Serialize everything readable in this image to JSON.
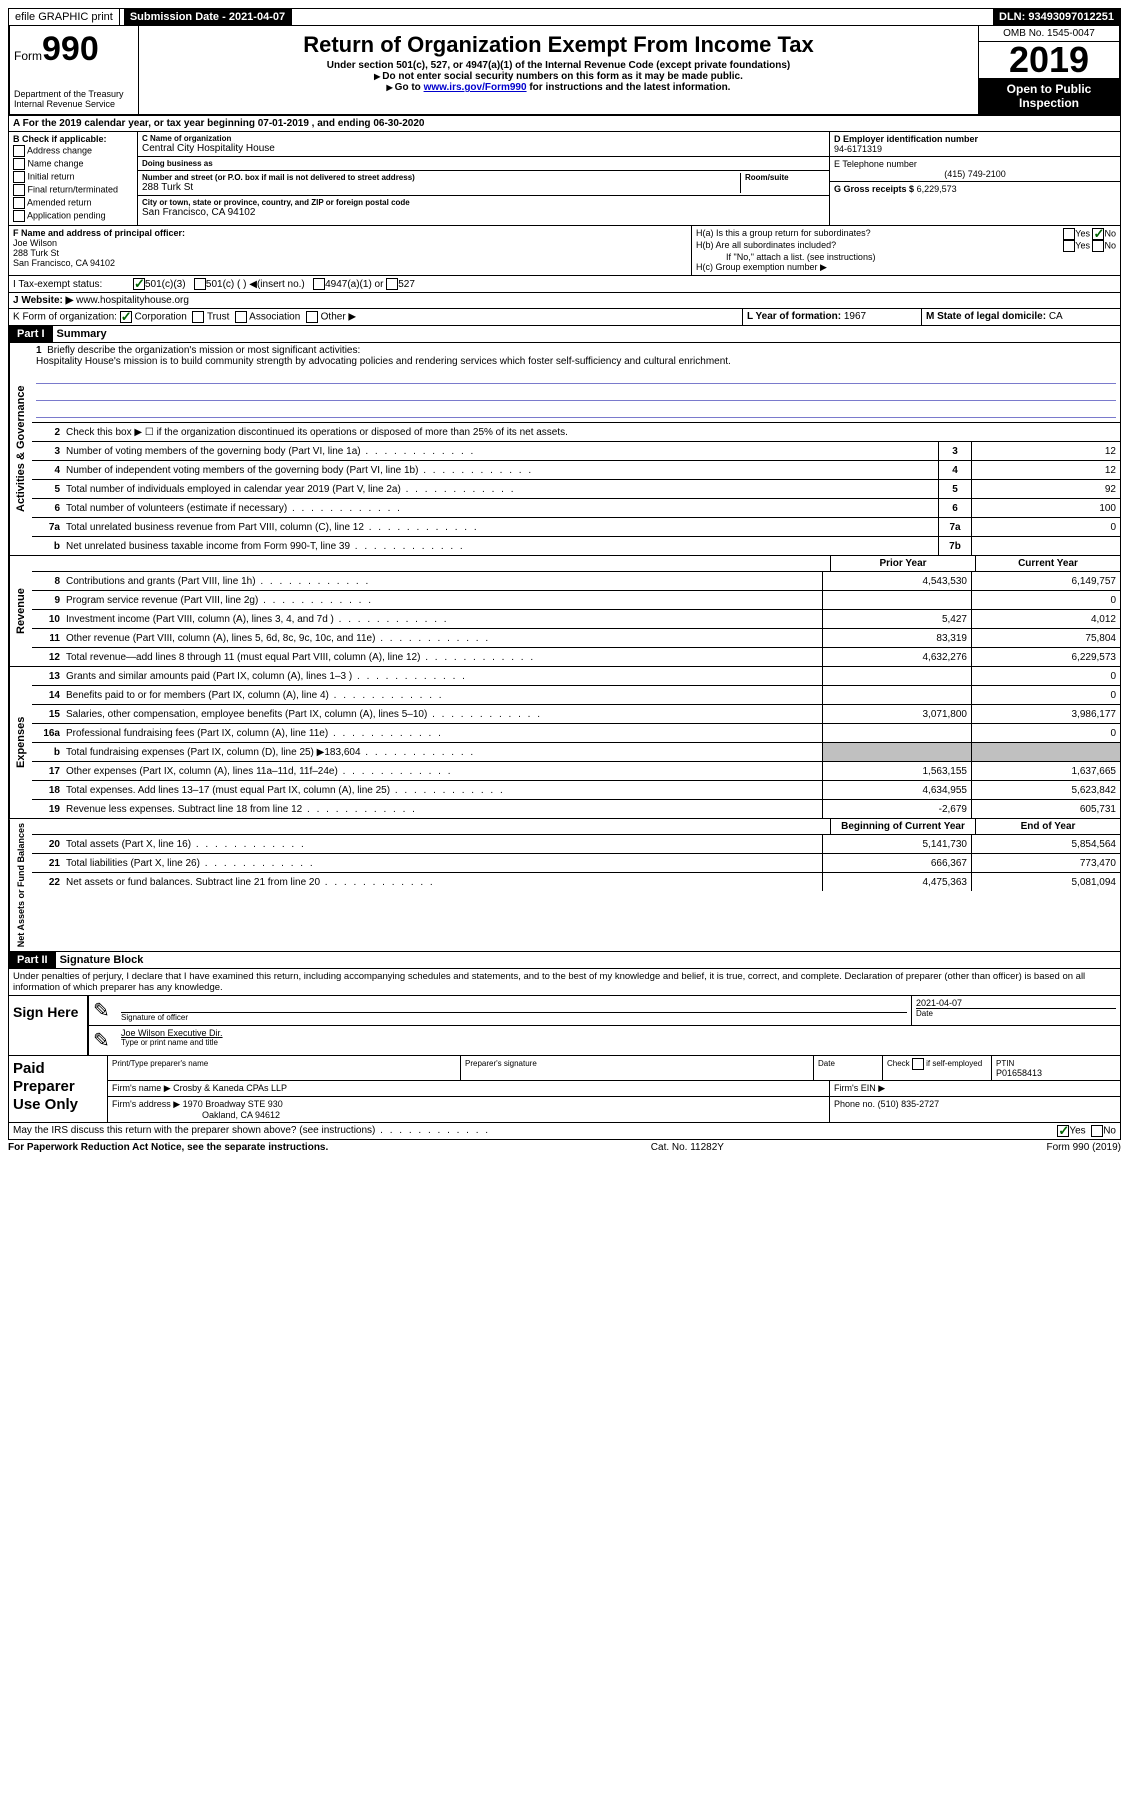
{
  "topbar": {
    "efile": "efile GRAPHIC print",
    "submission_label": "Submission Date - 2021-04-07",
    "dln_label": "DLN: 93493097012251"
  },
  "header": {
    "form_label": "Form",
    "form_number": "990",
    "dept1": "Department of the Treasury",
    "dept2": "Internal Revenue Service",
    "title": "Return of Organization Exempt From Income Tax",
    "subtitle": "Under section 501(c), 527, or 4947(a)(1) of the Internal Revenue Code (except private foundations)",
    "note1": "Do not enter social security numbers on this form as it may be made public.",
    "note2_pre": "Go to ",
    "note2_link": "www.irs.gov/Form990",
    "note2_post": " for instructions and the latest information.",
    "omb": "OMB No. 1545-0047",
    "year": "2019",
    "inspection": "Open to Public Inspection"
  },
  "line_a": "A For the 2019 calendar year, or tax year beginning 07-01-2019   , and ending 06-30-2020",
  "section_b": {
    "label": "B Check if applicable:",
    "opts": [
      "Address change",
      "Name change",
      "Initial return",
      "Final return/terminated",
      "Amended return",
      "Application pending"
    ]
  },
  "section_c": {
    "name_label": "C Name of organization",
    "name": "Central City Hospitality House",
    "dba_label": "Doing business as",
    "dba": "",
    "addr_label": "Number and street (or P.O. box if mail is not delivered to street address)",
    "room_label": "Room/suite",
    "addr": "288 Turk St",
    "city_label": "City or town, state or province, country, and ZIP or foreign postal code",
    "city": "San Francisco, CA  94102"
  },
  "section_d": {
    "ein_label": "D Employer identification number",
    "ein": "94-6171319",
    "phone_label": "E Telephone number",
    "phone": "(415) 749-2100",
    "gross_label": "G Gross receipts $",
    "gross": "6,229,573"
  },
  "section_f": {
    "label": "F Name and address of principal officer:",
    "name": "Joe Wilson",
    "addr1": "288 Turk St",
    "addr2": "San Francisco, CA  94102"
  },
  "section_h": {
    "ha": "H(a)  Is this a group return for subordinates?",
    "hb": "H(b)  Are all subordinates included?",
    "hb_note": "If \"No,\" attach a list. (see instructions)",
    "hc": "H(c)  Group exemption number ▶",
    "yes": "Yes",
    "no": "No"
  },
  "line_i": {
    "label": "I   Tax-exempt status:",
    "opt1": "501(c)(3)",
    "opt2": "501(c) (  ) ◀(insert no.)",
    "opt3": "4947(a)(1) or",
    "opt4": "527"
  },
  "line_j": {
    "label": "J   Website: ▶",
    "value": "www.hospitalityhouse.org"
  },
  "line_k": {
    "label": "K Form of organization:",
    "corp": "Corporation",
    "trust": "Trust",
    "assoc": "Association",
    "other": "Other ▶",
    "l_label": "L Year of formation:",
    "l_val": "1967",
    "m_label": "M State of legal domicile:",
    "m_val": "CA"
  },
  "part1": {
    "header": "Part I",
    "title": "Summary"
  },
  "governance": {
    "label": "Activities & Governance",
    "line1_label": "Briefly describe the organization's mission or most significant activities:",
    "line1_text": "Hospitality House's mission is to build community strength by advocating policies and rendering services which foster self-sufficiency and cultural enrichment.",
    "line2": "Check this box ▶ ☐ if the organization discontinued its operations or disposed of more than 25% of its net assets.",
    "rows": [
      {
        "n": "3",
        "t": "Number of voting members of the governing body (Part VI, line 1a)",
        "box": "3",
        "v": "12"
      },
      {
        "n": "4",
        "t": "Number of independent voting members of the governing body (Part VI, line 1b)",
        "box": "4",
        "v": "12"
      },
      {
        "n": "5",
        "t": "Total number of individuals employed in calendar year 2019 (Part V, line 2a)",
        "box": "5",
        "v": "92"
      },
      {
        "n": "6",
        "t": "Total number of volunteers (estimate if necessary)",
        "box": "6",
        "v": "100"
      },
      {
        "n": "7a",
        "t": "Total unrelated business revenue from Part VIII, column (C), line 12",
        "box": "7a",
        "v": "0"
      },
      {
        "n": "b",
        "t": "Net unrelated business taxable income from Form 990-T, line 39",
        "box": "7b",
        "v": ""
      }
    ]
  },
  "col_headers": {
    "prior": "Prior Year",
    "current": "Current Year"
  },
  "revenue": {
    "label": "Revenue",
    "rows": [
      {
        "n": "8",
        "t": "Contributions and grants (Part VIII, line 1h)",
        "p": "4,543,530",
        "c": "6,149,757"
      },
      {
        "n": "9",
        "t": "Program service revenue (Part VIII, line 2g)",
        "p": "",
        "c": "0"
      },
      {
        "n": "10",
        "t": "Investment income (Part VIII, column (A), lines 3, 4, and 7d )",
        "p": "5,427",
        "c": "4,012"
      },
      {
        "n": "11",
        "t": "Other revenue (Part VIII, column (A), lines 5, 6d, 8c, 9c, 10c, and 11e)",
        "p": "83,319",
        "c": "75,804"
      },
      {
        "n": "12",
        "t": "Total revenue—add lines 8 through 11 (must equal Part VIII, column (A), line 12)",
        "p": "4,632,276",
        "c": "6,229,573"
      }
    ]
  },
  "expenses": {
    "label": "Expenses",
    "rows": [
      {
        "n": "13",
        "t": "Grants and similar amounts paid (Part IX, column (A), lines 1–3 )",
        "p": "",
        "c": "0"
      },
      {
        "n": "14",
        "t": "Benefits paid to or for members (Part IX, column (A), line 4)",
        "p": "",
        "c": "0"
      },
      {
        "n": "15",
        "t": "Salaries, other compensation, employee benefits (Part IX, column (A), lines 5–10)",
        "p": "3,071,800",
        "c": "3,986,177"
      },
      {
        "n": "16a",
        "t": "Professional fundraising fees (Part IX, column (A), line 11e)",
        "p": "",
        "c": "0"
      },
      {
        "n": "b",
        "t": "Total fundraising expenses (Part IX, column (D), line 25) ▶183,604",
        "p": "grey",
        "c": "grey"
      },
      {
        "n": "17",
        "t": "Other expenses (Part IX, column (A), lines 11a–11d, 11f–24e)",
        "p": "1,563,155",
        "c": "1,637,665"
      },
      {
        "n": "18",
        "t": "Total expenses. Add lines 13–17 (must equal Part IX, column (A), line 25)",
        "p": "4,634,955",
        "c": "5,623,842"
      },
      {
        "n": "19",
        "t": "Revenue less expenses. Subtract line 18 from line 12",
        "p": "-2,679",
        "c": "605,731"
      }
    ]
  },
  "netassets": {
    "label": "Net Assets or Fund Balances",
    "col_headers": {
      "prior": "Beginning of Current Year",
      "current": "End of Year"
    },
    "rows": [
      {
        "n": "20",
        "t": "Total assets (Part X, line 16)",
        "p": "5,141,730",
        "c": "5,854,564"
      },
      {
        "n": "21",
        "t": "Total liabilities (Part X, line 26)",
        "p": "666,367",
        "c": "773,470"
      },
      {
        "n": "22",
        "t": "Net assets or fund balances. Subtract line 21 from line 20",
        "p": "4,475,363",
        "c": "5,081,094"
      }
    ]
  },
  "part2": {
    "header": "Part II",
    "title": "Signature Block",
    "decl": "Under penalties of perjury, I declare that I have examined this return, including accompanying schedules and statements, and to the best of my knowledge and belief, it is true, correct, and complete. Declaration of preparer (other than officer) is based on all information of which preparer has any knowledge."
  },
  "sign": {
    "left": "Sign Here",
    "sig_label": "Signature of officer",
    "date_label": "Date",
    "date": "2021-04-07",
    "name": "Joe Wilson  Executive Dir.",
    "name_label": "Type or print name and title"
  },
  "prep": {
    "left": "Paid Preparer Use Only",
    "h1": "Print/Type preparer's name",
    "h2": "Preparer's signature",
    "h3": "Date",
    "h4_pre": "Check",
    "h4_post": "if self-employed",
    "h5": "PTIN",
    "ptin": "P01658413",
    "firm_label": "Firm's name    ▶",
    "firm": "Crosby & Kaneda CPAs LLP",
    "ein_label": "Firm's EIN ▶",
    "addr_label": "Firm's address ▶",
    "addr1": "1970 Broadway STE 930",
    "addr2": "Oakland, CA  94612",
    "phone_label": "Phone no.",
    "phone": "(510) 835-2727"
  },
  "discuss": {
    "text": "May the IRS discuss this return with the preparer shown above? (see instructions)",
    "yes": "Yes",
    "no": "No"
  },
  "footer": {
    "left": "For Paperwork Reduction Act Notice, see the separate instructions.",
    "mid": "Cat. No. 11282Y",
    "right": "Form 990 (2019)"
  }
}
